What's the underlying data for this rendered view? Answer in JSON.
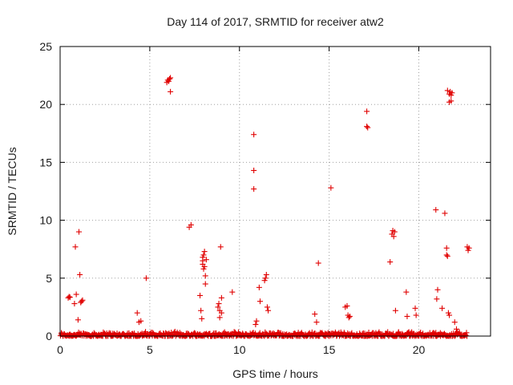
{
  "chart_data": {
    "type": "scatter",
    "title": "Day 114 of 2017, SRMTID for receiver atw2",
    "xlabel": "GPS time / hours",
    "ylabel": "SRMTID / TECUs",
    "xlim": [
      0,
      24
    ],
    "ylim": [
      0,
      25
    ],
    "xticks": [
      0,
      5,
      10,
      15,
      20
    ],
    "yticks": [
      0,
      5,
      10,
      15,
      20,
      25
    ],
    "grid": true,
    "marker": "+",
    "color": "#e00000",
    "series": [
      {
        "name": "SRMTID",
        "baseline": {
          "description": "dense band of near-zero values across the day",
          "x_range": [
            0.0,
            22.7
          ],
          "y_range": [
            0.0,
            0.4
          ]
        },
        "points": [
          [
            0.45,
            3.3
          ],
          [
            0.5,
            3.4
          ],
          [
            0.55,
            3.35
          ],
          [
            0.8,
            2.8
          ],
          [
            0.85,
            7.7
          ],
          [
            0.9,
            3.6
          ],
          [
            1.05,
            9.0
          ],
          [
            1.1,
            5.3
          ],
          [
            1.0,
            1.4
          ],
          [
            1.15,
            2.9
          ],
          [
            1.2,
            3.0
          ],
          [
            1.25,
            3.1
          ],
          [
            4.3,
            2.0
          ],
          [
            4.4,
            1.2
          ],
          [
            4.5,
            1.3
          ],
          [
            4.8,
            5.0
          ],
          [
            5.95,
            21.9
          ],
          [
            6.0,
            22.1
          ],
          [
            6.05,
            22.0
          ],
          [
            6.1,
            22.2
          ],
          [
            6.15,
            22.3
          ],
          [
            6.15,
            21.1
          ],
          [
            7.2,
            9.4
          ],
          [
            7.3,
            9.6
          ],
          [
            7.8,
            3.5
          ],
          [
            7.85,
            2.2
          ],
          [
            7.9,
            1.5
          ],
          [
            7.95,
            6.8
          ],
          [
            7.95,
            6.5
          ],
          [
            7.95,
            6.2
          ],
          [
            8.0,
            7.0
          ],
          [
            8.0,
            5.8
          ],
          [
            8.05,
            7.3
          ],
          [
            8.05,
            6.0
          ],
          [
            8.1,
            5.2
          ],
          [
            8.1,
            4.5
          ],
          [
            8.15,
            6.6
          ],
          [
            8.8,
            2.5
          ],
          [
            8.85,
            2.8
          ],
          [
            8.9,
            2.2
          ],
          [
            8.9,
            1.6
          ],
          [
            8.95,
            7.7
          ],
          [
            9.0,
            3.3
          ],
          [
            9.0,
            2.0
          ],
          [
            9.6,
            3.8
          ],
          [
            10.8,
            17.4
          ],
          [
            10.8,
            14.3
          ],
          [
            10.8,
            12.7
          ],
          [
            10.9,
            1.0
          ],
          [
            10.95,
            1.3
          ],
          [
            11.1,
            4.2
          ],
          [
            11.15,
            3.0
          ],
          [
            11.4,
            4.8
          ],
          [
            11.45,
            5.0
          ],
          [
            11.5,
            5.3
          ],
          [
            11.55,
            2.5
          ],
          [
            11.6,
            2.2
          ],
          [
            14.2,
            1.9
          ],
          [
            14.3,
            1.2
          ],
          [
            14.4,
            6.3
          ],
          [
            15.1,
            12.8
          ],
          [
            15.9,
            2.5
          ],
          [
            16.0,
            2.6
          ],
          [
            16.05,
            1.8
          ],
          [
            16.1,
            1.6
          ],
          [
            16.15,
            1.7
          ],
          [
            17.1,
            19.4
          ],
          [
            17.1,
            18.1
          ],
          [
            17.15,
            18.0
          ],
          [
            18.4,
            6.4
          ],
          [
            18.5,
            8.8
          ],
          [
            18.55,
            9.1
          ],
          [
            18.6,
            8.6
          ],
          [
            18.65,
            9.0
          ],
          [
            18.7,
            2.2
          ],
          [
            19.3,
            3.8
          ],
          [
            19.35,
            1.7
          ],
          [
            19.8,
            2.4
          ],
          [
            19.85,
            1.8
          ],
          [
            20.95,
            10.9
          ],
          [
            21.0,
            3.2
          ],
          [
            21.05,
            4.0
          ],
          [
            21.3,
            2.4
          ],
          [
            21.45,
            10.6
          ],
          [
            21.55,
            7.6
          ],
          [
            21.55,
            7.0
          ],
          [
            21.6,
            6.9
          ],
          [
            21.65,
            2.0
          ],
          [
            21.7,
            1.8
          ],
          [
            21.6,
            21.2
          ],
          [
            21.7,
            20.9
          ],
          [
            21.75,
            21.1
          ],
          [
            21.8,
            20.8
          ],
          [
            21.7,
            20.2
          ],
          [
            21.8,
            20.3
          ],
          [
            21.85,
            21.0
          ],
          [
            22.0,
            1.2
          ],
          [
            22.1,
            0.6
          ],
          [
            22.7,
            7.7
          ],
          [
            22.75,
            7.4
          ],
          [
            22.8,
            7.6
          ]
        ]
      }
    ]
  }
}
